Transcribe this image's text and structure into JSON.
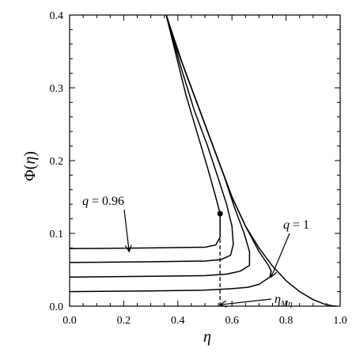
{
  "chart_data": {
    "type": "line",
    "xlabel": "η",
    "ylabel_symbol": "Φ",
    "ylabel_arg": "η",
    "xlim": [
      0.0,
      1.0
    ],
    "ylim": [
      0.0,
      0.4
    ],
    "x_ticks": [
      "0.0",
      "0.2",
      "0.4",
      "0.6",
      "0.8",
      "1.0"
    ],
    "y_ticks": [
      "0.0",
      "0.1",
      "0.2",
      "0.3",
      "0.4"
    ],
    "grid": false,
    "series": [
      {
        "name": "q = 1",
        "points": [
          [
            0.357,
            0.4
          ],
          [
            0.4,
            0.35
          ],
          [
            0.45,
            0.3
          ],
          [
            0.5,
            0.25
          ],
          [
            0.55,
            0.2
          ],
          [
            0.6,
            0.15
          ],
          [
            0.65,
            0.11
          ],
          [
            0.7,
            0.08
          ],
          [
            0.75,
            0.055
          ],
          [
            0.8,
            0.035
          ],
          [
            0.85,
            0.02
          ],
          [
            0.9,
            0.009
          ],
          [
            0.94,
            0.003
          ],
          [
            0.97,
            0.0005
          ],
          [
            0.985,
            0.0
          ]
        ]
      },
      {
        "name": "",
        "points": [
          [
            0.0,
            0.02
          ],
          [
            0.3,
            0.021
          ],
          [
            0.5,
            0.022
          ],
          [
            0.6,
            0.024
          ],
          [
            0.66,
            0.026
          ],
          [
            0.7,
            0.03
          ],
          [
            0.74,
            0.04
          ],
          [
            0.745,
            0.048
          ],
          [
            0.735,
            0.056
          ],
          [
            0.7,
            0.075
          ],
          [
            0.65,
            0.11
          ],
          [
            0.6,
            0.15
          ],
          [
            0.55,
            0.2
          ],
          [
            0.5,
            0.25
          ],
          [
            0.45,
            0.3
          ],
          [
            0.4,
            0.35
          ],
          [
            0.357,
            0.4
          ]
        ]
      },
      {
        "name": "",
        "points": [
          [
            0.0,
            0.04
          ],
          [
            0.3,
            0.041
          ],
          [
            0.5,
            0.042
          ],
          [
            0.58,
            0.044
          ],
          [
            0.63,
            0.048
          ],
          [
            0.665,
            0.056
          ],
          [
            0.665,
            0.075
          ],
          [
            0.645,
            0.1
          ],
          [
            0.61,
            0.135
          ],
          [
            0.57,
            0.18
          ],
          [
            0.52,
            0.23
          ],
          [
            0.47,
            0.28
          ],
          [
            0.42,
            0.33
          ],
          [
            0.357,
            0.4
          ]
        ]
      },
      {
        "name": "",
        "points": [
          [
            0.0,
            0.06
          ],
          [
            0.3,
            0.061
          ],
          [
            0.5,
            0.062
          ],
          [
            0.56,
            0.064
          ],
          [
            0.595,
            0.07
          ],
          [
            0.605,
            0.085
          ],
          [
            0.6,
            0.11
          ],
          [
            0.58,
            0.14
          ],
          [
            0.55,
            0.175
          ],
          [
            0.51,
            0.22
          ],
          [
            0.46,
            0.27
          ],
          [
            0.41,
            0.33
          ],
          [
            0.357,
            0.4
          ]
        ]
      },
      {
        "name": "q = 0.96",
        "points": [
          [
            0.0,
            0.079
          ],
          [
            0.3,
            0.08
          ],
          [
            0.5,
            0.081
          ],
          [
            0.54,
            0.084
          ],
          [
            0.556,
            0.095
          ],
          [
            0.556,
            0.127
          ],
          [
            0.54,
            0.15
          ],
          [
            0.51,
            0.19
          ],
          [
            0.47,
            0.24
          ],
          [
            0.43,
            0.29
          ],
          [
            0.39,
            0.35
          ],
          [
            0.357,
            0.4
          ]
        ]
      }
    ],
    "marker_point": [
      0.556,
      0.127
    ],
    "dashed_line": {
      "x": 0.556,
      "y_from": 0.127,
      "y_to": 0.0
    },
    "annotations": [
      {
        "prefix": "q",
        "text": " = 0.96",
        "arrow_tip": [
          0.22,
          0.075
        ]
      },
      {
        "prefix": "q",
        "text": " = 1",
        "arrow_tip": [
          0.745,
          0.04
        ]
      },
      {
        "prefix": "η",
        "text": "Mη",
        "arrow_tip": [
          0.556,
          0.002
        ]
      }
    ]
  }
}
